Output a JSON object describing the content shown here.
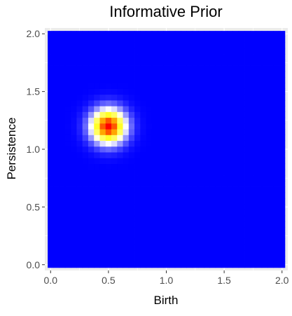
{
  "chart_data": {
    "type": "heatmap",
    "title": "Informative Prior",
    "xlabel": "Birth",
    "ylabel": "Persistence",
    "xlim": [
      -0.05,
      2.05
    ],
    "ylim": [
      -0.05,
      2.05
    ],
    "x_ticks": [
      "0.0",
      "0.5",
      "1.0",
      "1.5",
      "2.0"
    ],
    "y_ticks": [
      "0.0",
      "0.5",
      "1.0",
      "1.5",
      "2.0"
    ],
    "x_tick_values": [
      0,
      0.5,
      1.0,
      1.5,
      2.0
    ],
    "y_tick_values": [
      0,
      0.5,
      1.0,
      1.5,
      2.0
    ],
    "grid": true,
    "legend": "none",
    "grid_range": [
      0,
      2
    ],
    "grid_step": 0.05,
    "density": {
      "distribution": "bivariate normal",
      "mean_birth": 0.5,
      "mean_persistence": 1.2,
      "sd": 0.1
    },
    "color_scale": {
      "low": "#0000ff",
      "mid_low": "#ffffff",
      "mid_high": "#ffff00",
      "high": "#ff0000"
    }
  },
  "colors": {
    "panel_background": "#ebebeb",
    "grid_major": "#ffffff",
    "tick_mark": "#333333"
  }
}
